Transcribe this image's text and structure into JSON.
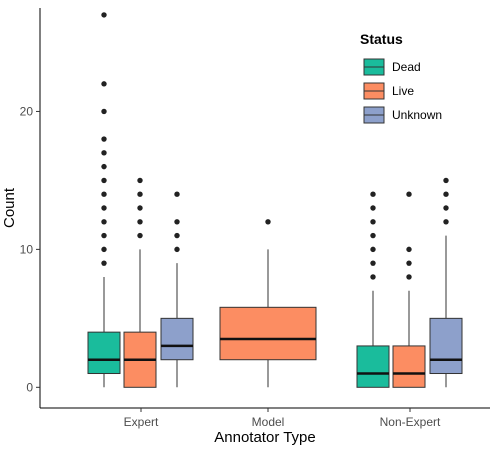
{
  "chart_data": {
    "type": "boxplot",
    "xlabel": "Annotator Type",
    "ylabel": "Count",
    "categories": [
      "Expert",
      "Model",
      "Non-Expert"
    ],
    "y_ticks": [
      0,
      10,
      20
    ],
    "ylim": [
      -1.5,
      27.5
    ],
    "grid": false,
    "legend": {
      "title": "Status",
      "position": "top-right",
      "entries": [
        {
          "label": "Dead",
          "color": "#1abc9c"
        },
        {
          "label": "Live",
          "color": "#fc8d62"
        },
        {
          "label": "Unknown",
          "color": "#8da0cb"
        }
      ]
    },
    "series": [
      {
        "name": "Dead",
        "color": "#1abc9c",
        "boxes": [
          {
            "category": "Expert",
            "min": 0,
            "q1": 1,
            "median": 2,
            "q3": 4,
            "max": 8,
            "outliers": [
              9,
              10,
              11,
              12,
              13,
              14,
              15,
              16,
              17,
              18,
              20,
              22,
              27
            ]
          },
          {
            "category": "Non-Expert",
            "min": 0,
            "q1": 0,
            "median": 1,
            "q3": 3,
            "max": 7,
            "outliers": [
              8,
              9,
              10,
              11,
              12,
              13,
              14
            ]
          }
        ]
      },
      {
        "name": "Live",
        "color": "#fc8d62",
        "boxes": [
          {
            "category": "Expert",
            "min": 0,
            "q1": 0,
            "median": 2,
            "q3": 4,
            "max": 10,
            "outliers": [
              11,
              12,
              13,
              14,
              15
            ]
          },
          {
            "category": "Model",
            "min": 0,
            "q1": 2,
            "median": 3.5,
            "q3": 5.8,
            "max": 10,
            "outliers": [
              12
            ]
          },
          {
            "category": "Non-Expert",
            "min": 0,
            "q1": 0,
            "median": 1,
            "q3": 3,
            "max": 7,
            "outliers": [
              8,
              9,
              10,
              14
            ]
          }
        ]
      },
      {
        "name": "Unknown",
        "color": "#8da0cb",
        "boxes": [
          {
            "category": "Expert",
            "min": 0,
            "q1": 2,
            "median": 3,
            "q3": 5,
            "max": 9,
            "outliers": [
              10,
              11,
              12,
              14
            ]
          },
          {
            "category": "Non-Expert",
            "min": 0,
            "q1": 1,
            "median": 2,
            "q3": 5,
            "max": 11,
            "outliers": [
              12,
              13,
              14,
              15
            ]
          }
        ]
      }
    ]
  }
}
